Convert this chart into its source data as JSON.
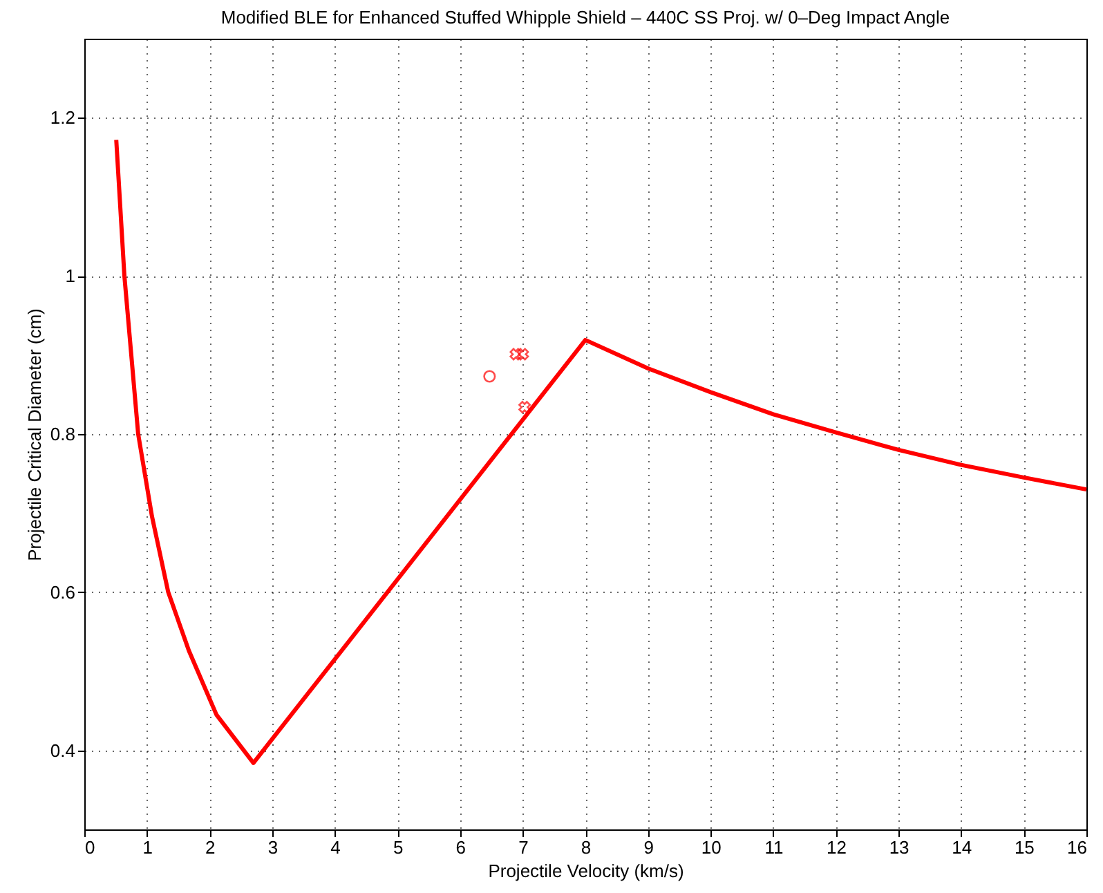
{
  "chart_data": {
    "type": "line",
    "title": "Modified BLE for Enhanced Stuffed Whipple Shield – 440C SS Proj. w/ 0–Deg Impact Angle",
    "xlabel": "Projectile Velocity (km/s)",
    "ylabel": "Projectile Critical Diameter (cm)",
    "xlim": [
      0,
      16
    ],
    "xticks": [
      0,
      1,
      2,
      3,
      4,
      5,
      6,
      7,
      8,
      9,
      10,
      11,
      12,
      13,
      14,
      15,
      16
    ],
    "ylim": [
      0.3,
      1.3
    ],
    "yticks": [
      0.4,
      0.6,
      0.8,
      1,
      1.2
    ],
    "grid": true,
    "series": [
      {
        "type": "line",
        "color": "#ff0000",
        "marker": "none",
        "line_style": "solid",
        "x": [
          0.51,
          0.64,
          0.86,
          1.08,
          1.34,
          1.67,
          2.11,
          2.7,
          8.0,
          9,
          10,
          11,
          12,
          13,
          14,
          15,
          16
        ],
        "values": [
          1.172,
          1.0,
          0.8,
          0.696,
          0.6,
          0.526,
          0.445,
          0.384,
          0.919,
          0.883,
          0.853,
          0.825,
          0.802,
          0.78,
          0.761,
          0.745,
          0.73
        ]
      },
      {
        "type": "scatter",
        "color": "#ff0000",
        "marker": "circle",
        "x": [
          6.47
        ],
        "values": [
          0.873
        ]
      },
      {
        "type": "scatter",
        "color": "#ff0000",
        "marker": "cross",
        "x": [
          6.89,
          7.0,
          7.03
        ],
        "values": [
          0.901,
          0.901,
          0.834
        ]
      }
    ]
  }
}
